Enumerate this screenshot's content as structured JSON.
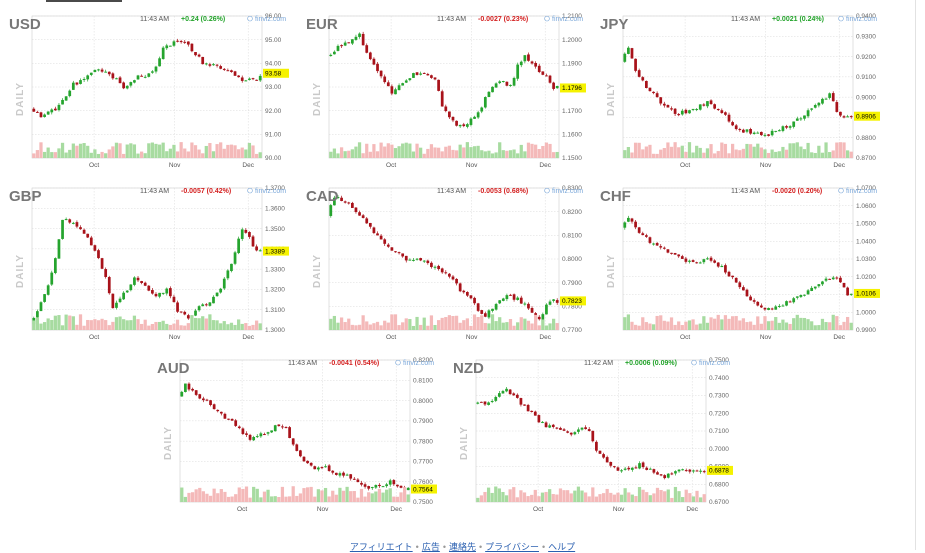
{
  "footer": {
    "links": [
      "アフィリエイト",
      "広告",
      "連絡先",
      "プライバシー",
      "ヘルプ"
    ],
    "separator": "•"
  },
  "chart_data": [
    {
      "type": "candlestick",
      "title": "USD",
      "side_label": "DAILY",
      "time": "11:43 AM",
      "change": "+0.24 (0.26%)",
      "change_color": "#22a32a",
      "source": "finviz.com",
      "yticks": [
        "96.00",
        "95.00",
        "94.00",
        "93.00",
        "92.00",
        "91.00",
        "90.00"
      ],
      "ylim": [
        90.0,
        96.0
      ],
      "xticks": [
        "Oct",
        "Nov",
        "Dec"
      ],
      "last_value": "93.58",
      "anchors": [
        [
          0,
          92.1
        ],
        [
          3,
          91.7
        ],
        [
          8,
          92.2
        ],
        [
          12,
          93.1
        ],
        [
          16,
          93.4
        ],
        [
          18,
          93.8
        ],
        [
          22,
          93.6
        ],
        [
          26,
          93.0
        ],
        [
          30,
          93.4
        ],
        [
          34,
          93.6
        ],
        [
          37,
          94.6
        ],
        [
          41,
          95.0
        ],
        [
          44,
          94.8
        ],
        [
          48,
          94.0
        ],
        [
          52,
          93.9
        ],
        [
          56,
          93.7
        ],
        [
          59,
          93.2
        ],
        [
          62,
          93.3
        ],
        [
          66,
          93.6
        ]
      ]
    },
    {
      "type": "candlestick",
      "title": "EUR",
      "side_label": "DAILY",
      "time": "11:43 AM",
      "change": "-0.0027 (0.23%)",
      "change_color": "#d42020",
      "source": "finviz.com",
      "yticks": [
        "1.2100",
        "1.2000",
        "1.1900",
        "1.1800",
        "1.1700",
        "1.1600",
        "1.1500"
      ],
      "ylim": [
        1.15,
        1.21
      ],
      "xticks": [
        "Oct",
        "Nov",
        "Dec"
      ],
      "last_value": "1.1796",
      "anchors": [
        [
          0,
          1.193
        ],
        [
          3,
          1.197
        ],
        [
          6,
          1.199
        ],
        [
          9,
          1.202
        ],
        [
          12,
          1.191
        ],
        [
          15,
          1.184
        ],
        [
          18,
          1.178
        ],
        [
          21,
          1.181
        ],
        [
          24,
          1.186
        ],
        [
          27,
          1.185
        ],
        [
          30,
          1.183
        ],
        [
          32,
          1.172
        ],
        [
          35,
          1.165
        ],
        [
          38,
          1.163
        ],
        [
          41,
          1.168
        ],
        [
          43,
          1.172
        ],
        [
          45,
          1.178
        ],
        [
          48,
          1.183
        ],
        [
          51,
          1.18
        ],
        [
          53,
          1.189
        ],
        [
          55,
          1.193
        ],
        [
          58,
          1.188
        ],
        [
          61,
          1.184
        ],
        [
          63,
          1.1796
        ]
      ]
    },
    {
      "type": "candlestick",
      "title": "JPY",
      "side_label": "DAILY",
      "time": "11:43 AM",
      "change": "+0.0021 (0.24%)",
      "change_color": "#22a32a",
      "source": "finviz.com",
      "yticks": [
        "0.9400",
        "0.9300",
        "0.9200",
        "0.9100",
        "0.9000",
        "0.8900",
        "0.8800",
        "0.8700"
      ],
      "ylim": [
        0.87,
        0.94
      ],
      "xticks": [
        "Oct",
        "Nov",
        "Dec"
      ],
      "last_value": "0.8906",
      "anchors": [
        [
          0,
          0.917
        ],
        [
          2,
          0.925
        ],
        [
          4,
          0.912
        ],
        [
          8,
          0.903
        ],
        [
          12,
          0.895
        ],
        [
          16,
          0.892
        ],
        [
          20,
          0.894
        ],
        [
          24,
          0.897
        ],
        [
          28,
          0.893
        ],
        [
          32,
          0.884
        ],
        [
          36,
          0.883
        ],
        [
          40,
          0.881
        ],
        [
          44,
          0.884
        ],
        [
          48,
          0.887
        ],
        [
          52,
          0.893
        ],
        [
          56,
          0.899
        ],
        [
          58,
          0.901
        ],
        [
          61,
          0.89
        ],
        [
          63,
          0.8906
        ]
      ]
    },
    {
      "type": "candlestick",
      "title": "GBP",
      "side_label": "DAILY",
      "time": "11:43 AM",
      "change": "-0.0057 (0.42%)",
      "change_color": "#d42020",
      "source": "finviz.com",
      "yticks": [
        "1.3700",
        "1.3600",
        "1.3500",
        "1.3400",
        "1.3300",
        "1.3200",
        "1.3100",
        "1.3000"
      ],
      "ylim": [
        1.3,
        1.37
      ],
      "xticks": [
        "Oct",
        "Nov",
        "Dec"
      ],
      "last_value": "1.3389",
      "anchors": [
        [
          0,
          1.303
        ],
        [
          3,
          1.313
        ],
        [
          5,
          1.322
        ],
        [
          7,
          1.335
        ],
        [
          9,
          1.355
        ],
        [
          12,
          1.352
        ],
        [
          15,
          1.348
        ],
        [
          18,
          1.34
        ],
        [
          21,
          1.326
        ],
        [
          23,
          1.311
        ],
        [
          26,
          1.318
        ],
        [
          29,
          1.325
        ],
        [
          32,
          1.321
        ],
        [
          35,
          1.316
        ],
        [
          38,
          1.32
        ],
        [
          41,
          1.31
        ],
        [
          44,
          1.305
        ],
        [
          47,
          1.311
        ],
        [
          50,
          1.314
        ],
        [
          53,
          1.321
        ],
        [
          56,
          1.332
        ],
        [
          59,
          1.35
        ],
        [
          61,
          1.345
        ],
        [
          63,
          1.3389
        ]
      ]
    },
    {
      "type": "candlestick",
      "title": "CAD",
      "side_label": "DAILY",
      "time": "11:43 AM",
      "change": "-0.0053 (0.68%)",
      "change_color": "#d42020",
      "source": "finviz.com",
      "yticks": [
        "0.8300",
        "0.8200",
        "0.8100",
        "0.8000",
        "0.7900",
        "0.7800",
        "0.7700"
      ],
      "ylim": [
        0.77,
        0.83
      ],
      "xticks": [
        "Oct",
        "Nov",
        "Dec"
      ],
      "last_value": "0.7823",
      "anchors": [
        [
          0,
          0.818
        ],
        [
          2,
          0.826
        ],
        [
          4,
          0.825
        ],
        [
          7,
          0.822
        ],
        [
          10,
          0.817
        ],
        [
          13,
          0.811
        ],
        [
          16,
          0.807
        ],
        [
          19,
          0.803
        ],
        [
          22,
          0.799
        ],
        [
          25,
          0.801
        ],
        [
          28,
          0.798
        ],
        [
          31,
          0.796
        ],
        [
          34,
          0.793
        ],
        [
          37,
          0.787
        ],
        [
          40,
          0.783
        ],
        [
          42,
          0.778
        ],
        [
          44,
          0.776
        ],
        [
          47,
          0.781
        ],
        [
          50,
          0.785
        ],
        [
          53,
          0.783
        ],
        [
          56,
          0.78
        ],
        [
          59,
          0.774
        ],
        [
          61,
          0.78
        ],
        [
          63,
          0.7823
        ]
      ]
    },
    {
      "type": "candlestick",
      "title": "CHF",
      "side_label": "DAILY",
      "time": "11:43 AM",
      "change": "-0.0020 (0.20%)",
      "change_color": "#d42020",
      "source": "finviz.com",
      "yticks": [
        "1.0700",
        "1.0600",
        "1.0500",
        "1.0400",
        "1.0300",
        "1.0200",
        "1.0100",
        "1.0000",
        "0.9900"
      ],
      "ylim": [
        0.99,
        1.07
      ],
      "xticks": [
        "Oct",
        "Nov",
        "Dec"
      ],
      "last_value": "1.0106",
      "anchors": [
        [
          0,
          1.048
        ],
        [
          2,
          1.053
        ],
        [
          4,
          1.047
        ],
        [
          8,
          1.04
        ],
        [
          12,
          1.035
        ],
        [
          16,
          1.031
        ],
        [
          20,
          1.028
        ],
        [
          24,
          1.03
        ],
        [
          28,
          1.025
        ],
        [
          32,
          1.017
        ],
        [
          36,
          1.006
        ],
        [
          40,
          1.001
        ],
        [
          44,
          1.003
        ],
        [
          48,
          1.008
        ],
        [
          52,
          1.012
        ],
        [
          56,
          1.018
        ],
        [
          59,
          1.02
        ],
        [
          61,
          1.016
        ],
        [
          63,
          1.0106
        ]
      ]
    },
    {
      "type": "candlestick",
      "title": "AUD",
      "side_label": "DAILY",
      "time": "11:43 AM",
      "change": "-0.0041 (0.54%)",
      "change_color": "#d42020",
      "source": "finviz.com",
      "yticks": [
        "0.8200",
        "0.8100",
        "0.8000",
        "0.7900",
        "0.7800",
        "0.7700",
        "0.7600",
        "0.7500"
      ],
      "ylim": [
        0.75,
        0.82
      ],
      "xticks": [
        "Oct",
        "Nov",
        "Dec"
      ],
      "last_value": "0.7564",
      "anchors": [
        [
          0,
          0.802
        ],
        [
          2,
          0.808
        ],
        [
          4,
          0.805
        ],
        [
          8,
          0.799
        ],
        [
          12,
          0.793
        ],
        [
          16,
          0.788
        ],
        [
          20,
          0.781
        ],
        [
          24,
          0.784
        ],
        [
          28,
          0.788
        ],
        [
          30,
          0.786
        ],
        [
          32,
          0.778
        ],
        [
          35,
          0.77
        ],
        [
          38,
          0.766
        ],
        [
          41,
          0.767
        ],
        [
          44,
          0.764
        ],
        [
          47,
          0.763
        ],
        [
          50,
          0.76
        ],
        [
          53,
          0.757
        ],
        [
          56,
          0.758
        ],
        [
          59,
          0.76
        ],
        [
          61,
          0.757
        ],
        [
          63,
          0.7564
        ]
      ]
    },
    {
      "type": "candlestick",
      "title": "NZD",
      "side_label": "DAILY",
      "time": "11:42 AM",
      "change": "+0.0006 (0.09%)",
      "change_color": "#22a32a",
      "source": "finviz.com",
      "yticks": [
        "0.7500",
        "0.7400",
        "0.7300",
        "0.7200",
        "0.7100",
        "0.7000",
        "0.6900",
        "0.6800",
        "0.6700"
      ],
      "ylim": [
        0.67,
        0.75
      ],
      "xticks": [
        "Oct",
        "Nov",
        "Dec"
      ],
      "last_value": "0.6878",
      "anchors": [
        [
          0,
          0.725
        ],
        [
          3,
          0.726
        ],
        [
          6,
          0.729
        ],
        [
          9,
          0.733
        ],
        [
          12,
          0.728
        ],
        [
          15,
          0.722
        ],
        [
          18,
          0.716
        ],
        [
          21,
          0.712
        ],
        [
          24,
          0.71
        ],
        [
          27,
          0.708
        ],
        [
          30,
          0.712
        ],
        [
          32,
          0.709
        ],
        [
          34,
          0.7
        ],
        [
          37,
          0.692
        ],
        [
          40,
          0.687
        ],
        [
          43,
          0.688
        ],
        [
          46,
          0.691
        ],
        [
          49,
          0.688
        ],
        [
          52,
          0.684
        ],
        [
          55,
          0.686
        ],
        [
          58,
          0.689
        ],
        [
          61,
          0.687
        ],
        [
          63,
          0.6878
        ]
      ]
    }
  ]
}
